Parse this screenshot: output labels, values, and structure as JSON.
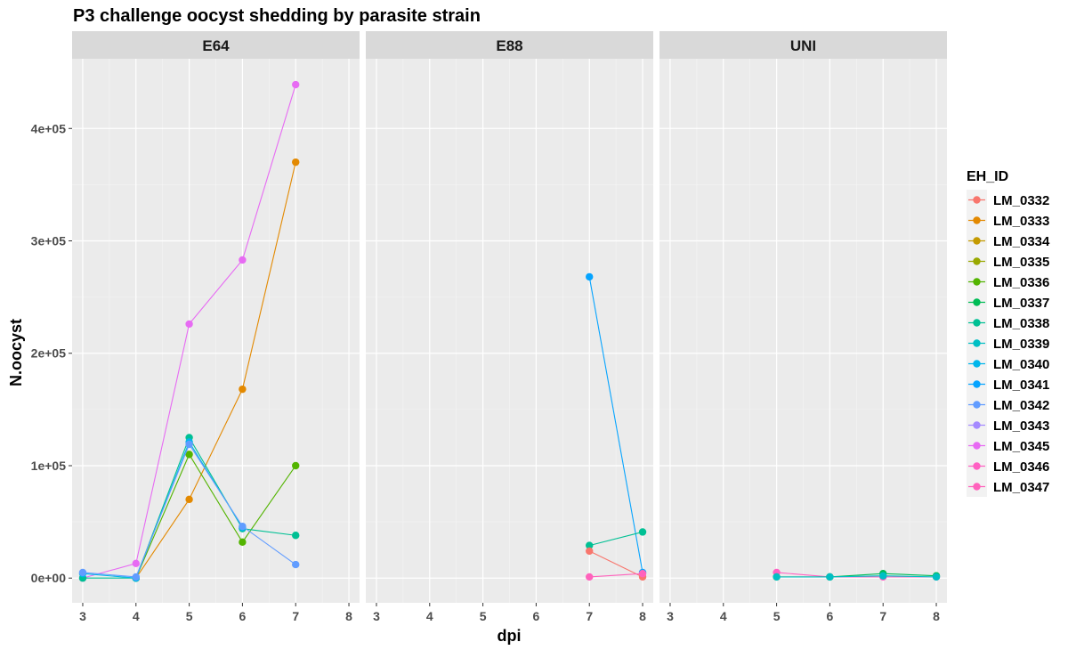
{
  "chart_data": {
    "type": "line",
    "title": "P3 challenge oocyst shedding by parasite strain",
    "xlabel": "dpi",
    "ylabel": "N.oocyst",
    "x_ticks": [
      3,
      4,
      5,
      6,
      7,
      8
    ],
    "xlim": [
      2.8,
      8.2
    ],
    "y_ticks": [
      0,
      100000,
      200000,
      300000,
      400000
    ],
    "y_tick_labels": [
      "0e+00",
      "1e+05",
      "2e+05",
      "3e+05",
      "4e+05"
    ],
    "ylim": [
      -22000,
      462000
    ],
    "facets": [
      "E64",
      "E88",
      "UNI"
    ],
    "grid": true,
    "legend": {
      "title": "EH_ID",
      "position": "right",
      "entries": [
        {
          "name": "LM_0332",
          "color": "#F8766D"
        },
        {
          "name": "LM_0333",
          "color": "#E38900"
        },
        {
          "name": "LM_0334",
          "color": "#C49A00"
        },
        {
          "name": "LM_0335",
          "color": "#99A800"
        },
        {
          "name": "LM_0336",
          "color": "#53B400"
        },
        {
          "name": "LM_0337",
          "color": "#00BC56"
        },
        {
          "name": "LM_0338",
          "color": "#00C094"
        },
        {
          "name": "LM_0339",
          "color": "#00BFC4"
        },
        {
          "name": "LM_0340",
          "color": "#00B6EB"
        },
        {
          "name": "LM_0341",
          "color": "#06A4FF"
        },
        {
          "name": "LM_0342",
          "color": "#619CFF"
        },
        {
          "name": "LM_0343",
          "color": "#A58AFF"
        },
        {
          "name": "LM_0345",
          "color": "#E76BF3"
        },
        {
          "name": "LM_0346",
          "color": "#FF61C3"
        },
        {
          "name": "LM_0347",
          "color": "#FF62BC"
        }
      ]
    },
    "series": [
      {
        "facet": "E64",
        "name": "LM_0345",
        "points": [
          [
            3,
            0
          ],
          [
            4,
            13000
          ],
          [
            5,
            226000
          ],
          [
            6,
            283000
          ],
          [
            7,
            439000
          ]
        ]
      },
      {
        "facet": "E64",
        "name": "LM_0333",
        "points": [
          [
            4,
            0
          ],
          [
            5,
            70000
          ],
          [
            6,
            168000
          ],
          [
            7,
            370000
          ]
        ]
      },
      {
        "facet": "E64",
        "name": "LM_0336",
        "points": [
          [
            4,
            0
          ],
          [
            5,
            110000
          ],
          [
            6,
            32000
          ],
          [
            7,
            100000
          ]
        ]
      },
      {
        "facet": "E64",
        "name": "LM_0338",
        "points": [
          [
            3,
            0
          ],
          [
            4,
            0
          ],
          [
            5,
            125000
          ],
          [
            6,
            44000
          ],
          [
            7,
            38000
          ]
        ]
      },
      {
        "facet": "E64",
        "name": "LM_0340",
        "points": [
          [
            3,
            4000
          ],
          [
            4,
            0
          ],
          [
            5,
            121000
          ],
          [
            6,
            45000
          ]
        ]
      },
      {
        "facet": "E64",
        "name": "LM_0342",
        "points": [
          [
            3,
            5000
          ],
          [
            4,
            1000
          ],
          [
            5,
            119000
          ],
          [
            6,
            46000
          ],
          [
            7,
            12000
          ]
        ]
      },
      {
        "facet": "E88",
        "name": "LM_0341",
        "points": [
          [
            7,
            268000
          ],
          [
            8,
            5000
          ]
        ]
      },
      {
        "facet": "E88",
        "name": "LM_0338",
        "points": [
          [
            7,
            29000
          ],
          [
            8,
            41000
          ]
        ]
      },
      {
        "facet": "E88",
        "name": "LM_0332",
        "points": [
          [
            7,
            24000
          ],
          [
            8,
            1000
          ]
        ]
      },
      {
        "facet": "E88",
        "name": "LM_0347",
        "points": [
          [
            7,
            1000
          ],
          [
            8,
            4000
          ]
        ]
      },
      {
        "facet": "UNI",
        "name": "LM_0346",
        "points": [
          [
            5,
            5000
          ],
          [
            6,
            1000
          ],
          [
            7,
            1000
          ],
          [
            8,
            1000
          ]
        ]
      },
      {
        "facet": "UNI",
        "name": "LM_0335",
        "points": [
          [
            5,
            1000
          ],
          [
            6,
            1000
          ]
        ]
      },
      {
        "facet": "UNI",
        "name": "LM_0337",
        "points": [
          [
            6,
            1000
          ],
          [
            7,
            4000
          ],
          [
            8,
            2000
          ]
        ]
      },
      {
        "facet": "UNI",
        "name": "LM_0339",
        "points": [
          [
            5,
            1000
          ],
          [
            6,
            1000
          ],
          [
            7,
            2000
          ],
          [
            8,
            1000
          ]
        ]
      }
    ]
  }
}
